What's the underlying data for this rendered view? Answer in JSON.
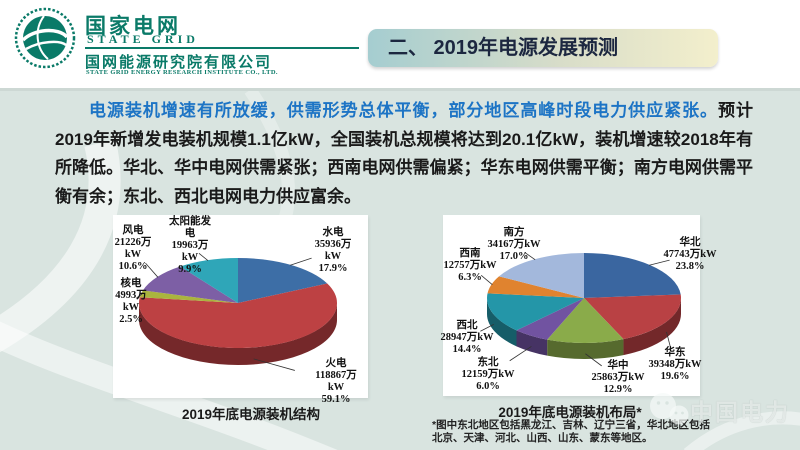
{
  "header": {
    "logo_cn": "国家电网",
    "logo_en": "STATE GRID",
    "org_cn": "国网能源研究院有限公司",
    "org_en": "STATE GRID ENERGY RESEARCH INSTITUTE CO., LTD.",
    "accent_green": "#0a7a68"
  },
  "banner": {
    "title": "二、 2019年电源发展预测",
    "gradient_left": "#a5cdd0",
    "gradient_right": "#f3efcc",
    "text_color": "#1c2740"
  },
  "paragraph": {
    "highlight": "电源装机增速有所放缓，供需形势总体平衡，部分地区高峰时段电力供应紧张。",
    "rest": "预计2019年新增发电装机规模1.1亿kW，全国装机总规模将达到20.1亿kW，装机增速较2018年有所降低。华北、华中电网供需紧张；西南电网供需偏紧；华东电网供需平衡；南方电网供需平衡有余；东北、西北电网电力供应富余。",
    "highlight_color": "#1d74c5"
  },
  "chart_data": [
    {
      "type": "pie",
      "title": "2019年底电源装机结构",
      "unit": "万kW",
      "labels": [
        "水电",
        "火电",
        "核电",
        "风电",
        "太阳能发电"
      ],
      "values": [
        35936,
        118867,
        4993,
        21226,
        19963
      ],
      "percents": [
        "17.9",
        "59.1",
        "2.5",
        "10.6",
        "9.9"
      ],
      "colors": [
        "#3d6ea6",
        "#bd4143",
        "#aab43e",
        "#7d5fa5",
        "#2fa6b8"
      ],
      "start_angle_deg": 0,
      "clockwise": true,
      "effect_3d": true,
      "legend_position": "callout-labels"
    },
    {
      "type": "pie",
      "title": "2019年底电源装机布局*",
      "unit": "万kW",
      "labels": [
        "华北",
        "华东",
        "华中",
        "东北",
        "西北",
        "西南",
        "南方"
      ],
      "values": [
        47743,
        39348,
        25863,
        12159,
        28947,
        12757,
        34167
      ],
      "percents": [
        "23.8",
        "19.6",
        "12.9",
        "6.0",
        "14.4",
        "6.3",
        "17.0"
      ],
      "colors": [
        "#3a66a0",
        "#b94144",
        "#8aab4a",
        "#7153a1",
        "#2496a8",
        "#e0832f",
        "#a3b8dc"
      ],
      "start_angle_deg": 0,
      "clockwise": true,
      "effect_3d": true,
      "legend_position": "callout-labels"
    }
  ],
  "footnote": "*图中东北地区包括黑龙江、吉林、辽宁三省，华北地区包括北京、天津、河北、山西、山东、蒙东等地区。",
  "watermark": {
    "icon": "wechat-icon",
    "text": "中国电力"
  },
  "background": {
    "slide": "#d9e4e0",
    "panel": "#ffffff"
  }
}
